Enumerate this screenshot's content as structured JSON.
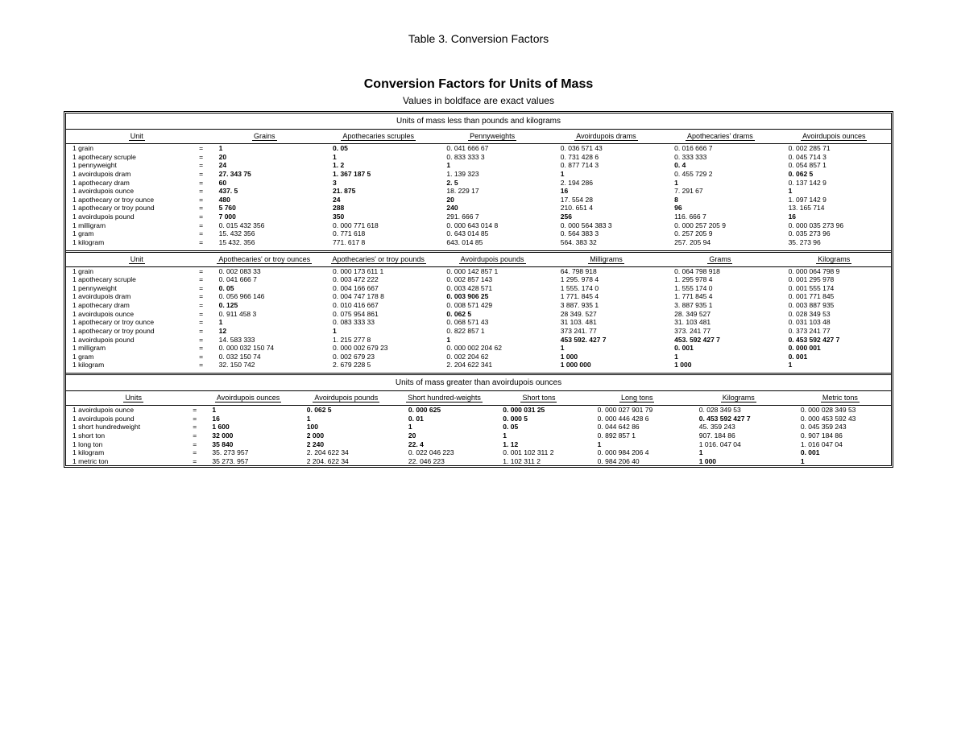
{
  "caption": "Table 3.  Conversion Factors",
  "title": "Conversion Factors for Units of Mass",
  "subtitle": "Values in boldface are exact values",
  "section1_header": "Units of mass less than pounds and kilograms",
  "section2_header": "Units of mass greater than avoirdupois ounces",
  "colors": {
    "bg": "#ffffff",
    "fg": "#000000",
    "border": "#000000"
  },
  "block1": {
    "headers": [
      "Unit",
      "Grains",
      "Apothecaries scruples",
      "Pennyweights",
      "Avoirdupois drams",
      "Apothecaries' drams",
      "Avoirdupois ounces"
    ],
    "rows": [
      {
        "unit": "1 grain",
        "v": [
          "1",
          "0. 05",
          "0. 041 666 67",
          "0. 036 571 43",
          "0. 016 666 7",
          "0. 002 285 71"
        ],
        "bold": [
          0,
          1
        ]
      },
      {
        "unit": "1 apothecary scruple",
        "v": [
          "20",
          "1",
          "0. 833 333 3",
          "0. 731 428 6",
          "0. 333 333",
          "0. 045 714 3"
        ],
        "bold": [
          0,
          1
        ]
      },
      {
        "unit": "1 pennyweight",
        "v": [
          "24",
          "1. 2",
          "1",
          "0. 877 714 3",
          "0. 4",
          "0. 054 857 1"
        ],
        "bold": [
          0,
          1,
          2,
          4
        ]
      },
      {
        "unit": "1 avoirdupois dram",
        "v": [
          "27. 343 75",
          "1. 367 187 5",
          "1. 139 323",
          "1",
          "0. 455 729 2",
          "0. 062 5"
        ],
        "bold": [
          0,
          1,
          3,
          5
        ]
      },
      {
        "unit": "1 apothecary dram",
        "v": [
          "60",
          "3",
          "2. 5",
          "2. 194 286",
          "1",
          "0. 137 142 9"
        ],
        "bold": [
          0,
          1,
          2,
          4
        ]
      },
      {
        "unit": "1 avoirdupois ounce",
        "v": [
          "437. 5",
          "21. 875",
          "18. 229 17",
          "16",
          "7. 291 67",
          "1"
        ],
        "bold": [
          0,
          1,
          3,
          5
        ]
      },
      {
        "unit": "1 apothecary or troy ounce",
        "v": [
          "480",
          "24",
          "20",
          "17. 554 28",
          "8",
          "1. 097 142 9"
        ],
        "bold": [
          0,
          1,
          2,
          4
        ]
      },
      {
        "unit": "1 apothecary or troy pound",
        "v": [
          "5 760",
          "288",
          "240",
          "210. 651 4",
          "96",
          "13. 165 714"
        ],
        "bold": [
          0,
          1,
          2,
          4
        ]
      },
      {
        "unit": "1 avoirdupois pound",
        "v": [
          "7 000",
          "350",
          "291. 666 7",
          "256",
          "116. 666 7",
          "16"
        ],
        "bold": [
          0,
          1,
          3,
          5
        ]
      },
      {
        "unit": "1 milligram",
        "v": [
          "    0. 015 432 356",
          "0. 000 771 618",
          "    0. 000 643 014 8",
          "    0. 000 564 383 3",
          "    0. 000 257 205 9",
          "  0. 000 035 273 96"
        ],
        "bold": []
      },
      {
        "unit": "1 gram",
        "v": [
          "  15. 432 356",
          "0. 771 618",
          "    0. 643 014 85",
          "    0. 564 383 3",
          "    0. 257 205 9",
          "  0. 035 273 96"
        ],
        "bold": []
      },
      {
        "unit": "1 kilogram",
        "v": [
          "15 432. 356",
          "771. 617 8",
          "643. 014 85",
          "564. 383 32",
          "257. 205 94",
          "35. 273 96"
        ],
        "bold": []
      }
    ]
  },
  "block2": {
    "headers": [
      "Unit",
      "Apothecaries' or troy ounces",
      "Apothecaries' or troy pounds",
      "Avoirdupois pounds",
      "Milligrams",
      "Grams",
      "Kilograms"
    ],
    "rows": [
      {
        "unit": "1 grain",
        "v": [
          "0. 002 083 33",
          "0. 000 173 611 1",
          "0. 000 142 857 1",
          "      64. 798 918",
          "    0. 064 798 918",
          "0. 000 064 798 9"
        ],
        "bold": []
      },
      {
        "unit": "1 apothecary scruple",
        "v": [
          "0. 041 666 7",
          "0. 003 472 222",
          "0. 002 857 143",
          "  1 295. 978 4",
          "    1. 295 978 4",
          "0. 001 295 978"
        ],
        "bold": []
      },
      {
        "unit": "1 pennyweight",
        "v": [
          "0. 05",
          "0. 004 166 667",
          "0. 003 428 571",
          "  1 555. 174 0",
          "    1. 555 174 0",
          "0. 001 555 174"
        ],
        "bold": [
          0
        ]
      },
      {
        "unit": "1 avoirdupois dram",
        "v": [
          "0. 056 966 146",
          "0. 004 747 178 8",
          "0. 003 906 25",
          "  1 771. 845 4",
          "    1. 771 845 4",
          "0. 001 771 845"
        ],
        "bold": [
          2
        ]
      },
      {
        "unit": "1 apothecary dram",
        "v": [
          "0. 125",
          "0. 010 416 667",
          "0. 008 571 429",
          "  3 887. 935 1",
          "    3. 887 935 1",
          "0. 003 887 935"
        ],
        "bold": [
          0
        ]
      },
      {
        "unit": "1 avoirdupois ounce",
        "v": [
          "0. 911 458 3",
          "0. 075 954 861",
          "0. 062 5",
          " 28 349. 527",
          "  28. 349 527",
          "0. 028 349 53"
        ],
        "bold": [
          2
        ]
      },
      {
        "unit": "1 apothecary or troy ounce",
        "v": [
          "1",
          "0. 083 333 33",
          "0. 068 571 43",
          " 31 103. 481",
          "  31. 103 481",
          "0. 031 103 48"
        ],
        "bold": [
          0
        ]
      },
      {
        "unit": "1 apothecary or troy pound",
        "v": [
          "12",
          "1",
          "0. 822 857 1",
          "373 241. 77",
          "373. 241 77",
          "0. 373 241 77"
        ],
        "bold": [
          0,
          1
        ]
      },
      {
        "unit": "1 avoirdupois pound",
        "v": [
          "14. 583 333",
          "1. 215 277 8",
          "1",
          "453 592. 427 7",
          "453. 592 427 7",
          "0. 453 592 427 7"
        ],
        "bold": [
          2,
          3,
          4,
          5
        ]
      },
      {
        "unit": "1 milligram",
        "v": [
          "  0. 000 032 150 74",
          "0. 000 002 679 23",
          "0. 000 002 204 62",
          "      1",
          "    0. 001",
          "0. 000 001"
        ],
        "bold": [
          3,
          4,
          5
        ]
      },
      {
        "unit": "1 gram",
        "v": [
          "  0. 032 150 74",
          "0. 002 679 23",
          "0. 002 204 62",
          "  1 000",
          "    1",
          "0. 001"
        ],
        "bold": [
          3,
          4,
          5
        ]
      },
      {
        "unit": "1 kilogram",
        "v": [
          "32. 150 742",
          "2. 679 228 5",
          "2. 204 622 341",
          "1 000 000",
          "1 000",
          "1"
        ],
        "bold": [
          3,
          4,
          5
        ]
      }
    ]
  },
  "block3": {
    "headers": [
      "Units",
      "Avoirdupois ounces",
      "Avoirdupois pounds",
      "Short hundred-weights",
      "Short tons",
      "Long tons",
      "Kilograms",
      "Metric tons"
    ],
    "rows": [
      {
        "unit": "1 avoirdupois ounce",
        "v": [
          "    1",
          "   0. 062 5",
          "  0. 000 625",
          "0. 000 031 25",
          "0. 000 027 901 79",
          "      0. 028 349 53",
          "0. 000 028 349 53"
        ],
        "bold": [
          0,
          1,
          2,
          3
        ]
      },
      {
        "unit": "1 avoirdupois pound",
        "v": [
          "   16",
          "   1",
          "  0. 01",
          "0. 000 5",
          "0. 000 446 428 6",
          "      0. 453 592 427 7",
          "0. 000 453 592 43"
        ],
        "bold": [
          0,
          1,
          2,
          3,
          5
        ]
      },
      {
        "unit": "1 short hundredweight",
        "v": [
          "  1 600",
          " 100",
          "  1",
          "0. 05",
          "0. 044 642 86",
          "    45. 359 243",
          "0. 045 359 243"
        ],
        "bold": [
          0,
          1,
          2,
          3
        ]
      },
      {
        "unit": "1 short ton",
        "v": [
          " 32 000",
          "2 000",
          " 20",
          "1",
          "0. 892 857 1",
          "  907. 184 86",
          "0. 907 184 86"
        ],
        "bold": [
          0,
          1,
          2,
          3
        ]
      },
      {
        "unit": "1 long ton",
        "v": [
          " 35 840",
          "2 240",
          " 22. 4",
          "1. 12",
          "1",
          "1 016. 047 04",
          "1. 016 047 04"
        ],
        "bold": [
          0,
          1,
          2,
          3,
          4
        ]
      },
      {
        "unit": "1 kilogram",
        "v": [
          "      35. 273 957",
          "     2. 204 622 34",
          "    0. 022 046 223",
          "0. 001 102 311 2",
          "0. 000 984 206 4",
          "      1",
          "0. 001"
        ],
        "bold": [
          5,
          6
        ]
      },
      {
        "unit": "1 metric ton",
        "v": [
          " 35 273. 957",
          "2 204. 622 34",
          " 22. 046 223",
          "1. 102 311 2",
          "0. 984 206 40",
          "1 000",
          "1"
        ],
        "bold": [
          5,
          6
        ]
      }
    ]
  }
}
